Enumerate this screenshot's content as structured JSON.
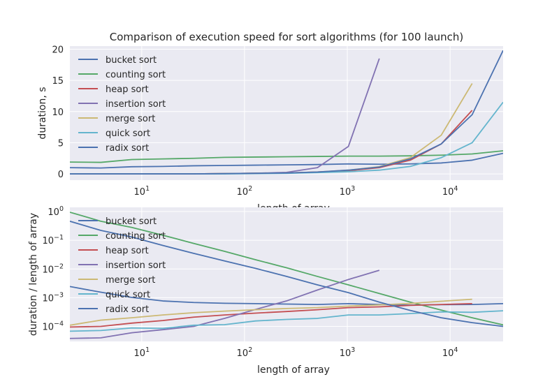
{
  "figure": {
    "title": "Comparison of execution speed for sort algorithms (for 100 launch)"
  },
  "legend_entries": [
    "bucket sort",
    "counting sort",
    "heap sort",
    "insertion sort",
    "merge sort",
    "quick sort",
    "radix sort"
  ],
  "colors": {
    "axes_bg": "#eaeaf2",
    "grid": "#ffffff",
    "text": "#262626",
    "bucket sort": "#4c72b0",
    "counting sort": "#55a868",
    "heap sort": "#c44e52",
    "insertion sort": "#8172b2",
    "merge sort": "#ccb974",
    "quick sort": "#64b5cd",
    "radix sort": "#4c72b0"
  },
  "chart_data": [
    {
      "type": "line",
      "title": "Comparison of execution speed for sort algorithms (for 100 launch)",
      "xlabel": "length of array",
      "ylabel": "duration, s",
      "xscale": "log",
      "yscale": "linear",
      "xlim": [
        2,
        32768
      ],
      "ylim": [
        -1,
        20.5
      ],
      "xticks": [
        10,
        100,
        1000,
        10000
      ],
      "xtick_labels": [
        "10^1",
        "10^2",
        "10^3",
        "10^4"
      ],
      "yticks": [
        0,
        5,
        10,
        15,
        20
      ],
      "ytick_labels": [
        "0",
        "5",
        "10",
        "15",
        "20"
      ],
      "grid": true,
      "legend_position": "upper-left",
      "x": [
        2,
        4,
        8,
        16,
        32,
        64,
        128,
        256,
        512,
        1024,
        2048,
        4096,
        8192,
        16384,
        32768
      ],
      "series": [
        {
          "name": "bucket sort",
          "values": [
            1.0,
            0.95,
            1.15,
            1.2,
            1.3,
            1.35,
            1.4,
            1.45,
            1.5,
            1.6,
            1.55,
            1.6,
            1.75,
            2.2,
            3.3
          ]
        },
        {
          "name": "counting sort",
          "values": [
            1.9,
            1.85,
            2.3,
            2.4,
            2.5,
            2.65,
            2.7,
            2.75,
            2.8,
            2.85,
            2.85,
            2.9,
            3.0,
            3.2,
            3.7
          ]
        },
        {
          "name": "heap sort",
          "values": [
            0.0,
            0.0,
            0.0,
            0.0,
            0.0,
            0.05,
            0.1,
            0.15,
            0.3,
            0.5,
            1.0,
            2.2,
            4.8,
            10.2,
            null
          ]
        },
        {
          "name": "insertion sort",
          "values": [
            0.0,
            0.0,
            0.0,
            0.0,
            0.0,
            0.05,
            0.1,
            0.25,
            1.0,
            4.4,
            18.5,
            null,
            null,
            null,
            null
          ]
        },
        {
          "name": "merge sort",
          "values": [
            0.0,
            0.0,
            0.0,
            0.0,
            0.0,
            0.05,
            0.1,
            0.15,
            0.3,
            0.6,
            1.15,
            2.6,
            6.2,
            14.5,
            null
          ]
        },
        {
          "name": "quick sort",
          "values": [
            0.0,
            0.0,
            0.0,
            0.0,
            0.0,
            0.0,
            0.05,
            0.1,
            0.2,
            0.35,
            0.6,
            1.2,
            2.6,
            5.0,
            11.5
          ]
        },
        {
          "name": "radix sort",
          "values": [
            0.0,
            0.0,
            0.0,
            0.0,
            0.0,
            0.05,
            0.1,
            0.15,
            0.3,
            0.6,
            1.1,
            2.4,
            4.8,
            9.5,
            19.8
          ]
        }
      ]
    },
    {
      "type": "line",
      "title": "",
      "xlabel": "length of array",
      "ylabel": "duration / length of array",
      "xscale": "log",
      "yscale": "log",
      "xlim": [
        2,
        32768
      ],
      "ylim": [
        3e-05,
        1.4
      ],
      "xticks": [
        10,
        100,
        1000,
        10000
      ],
      "xtick_labels": [
        "10^1",
        "10^2",
        "10^3",
        "10^4"
      ],
      "yticks": [
        0.0001,
        0.001,
        0.01,
        0.1,
        1
      ],
      "ytick_labels": [
        "10^-4",
        "10^-3",
        "10^-2",
        "10^-1",
        "10^0"
      ],
      "grid": true,
      "legend_position": "upper-left",
      "x": [
        2,
        4,
        8,
        16,
        32,
        64,
        128,
        256,
        512,
        1024,
        2048,
        4096,
        8192,
        16384,
        32768
      ],
      "series": [
        {
          "name": "bucket sort",
          "values": [
            0.00245,
            0.00155,
            0.00102,
            0.00077,
            0.00068,
            0.00064,
            0.00062,
            0.0006,
            0.00058,
            0.00062,
            0.00058,
            0.00055,
            0.00057,
            0.00058,
            0.00062
          ]
        },
        {
          "name": "counting sort",
          "values": [
            0.95,
            0.46,
            0.28,
            0.15,
            0.078,
            0.041,
            0.021,
            0.011,
            0.0055,
            0.0028,
            0.0014,
            0.0007,
            0.00037,
            0.0002,
            0.000113
          ]
        },
        {
          "name": "heap sort",
          "values": [
            9.5e-05,
            0.0001,
            0.00013,
            0.00016,
            0.00021,
            0.00025,
            0.00029,
            0.00033,
            0.00038,
            0.00045,
            0.00048,
            0.00054,
            0.00058,
            0.00062,
            null
          ]
        },
        {
          "name": "insertion sort",
          "values": [
            3.8e-05,
            4e-05,
            6e-05,
            7.7e-05,
            0.0001,
            0.00019,
            0.00039,
            0.00077,
            0.00185,
            0.0043,
            0.009,
            null,
            null,
            null,
            null
          ]
        },
        {
          "name": "merge sort",
          "values": [
            0.00011,
            0.000165,
            0.0002,
            0.00025,
            0.0003,
            0.00034,
            0.00038,
            0.00042,
            0.00045,
            0.00051,
            0.00056,
            0.00063,
            0.00075,
            0.00088,
            null
          ]
        },
        {
          "name": "quick sort",
          "values": [
            6.8e-05,
            7.2e-05,
            8.8e-05,
            8.5e-05,
            0.00011,
            0.000115,
            0.000155,
            0.000175,
            0.00019,
            0.00025,
            0.00025,
            0.00028,
            0.00032,
            0.00031,
            0.00035
          ]
        },
        {
          "name": "radix sort",
          "values": [
            0.46,
            0.22,
            0.13,
            0.066,
            0.035,
            0.019,
            0.0105,
            0.0055,
            0.0028,
            0.0015,
            0.0007,
            0.00036,
            0.0002,
            0.000135,
            0.0001
          ]
        }
      ]
    }
  ]
}
